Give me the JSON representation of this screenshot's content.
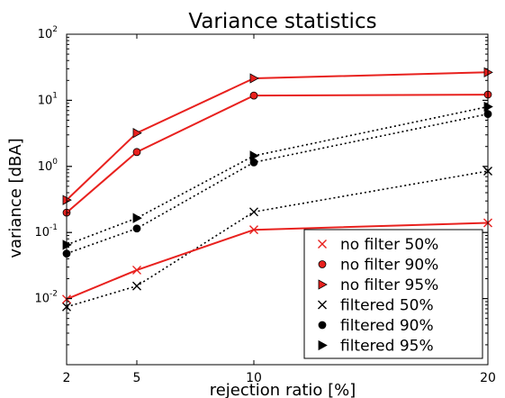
{
  "chart_data": {
    "type": "line",
    "title": "Variance statistics",
    "xlabel": "rejection ratio [%]",
    "ylabel": "variance [dBA]",
    "x_scale": "linear",
    "y_scale": "log",
    "xlim": [
      2,
      20
    ],
    "ylim": [
      0.001,
      100
    ],
    "x_ticks": [
      2,
      5,
      10,
      20
    ],
    "x_tick_labels": [
      "2",
      "5",
      "10",
      "20"
    ],
    "y_ticks": [
      0.01,
      0.1,
      1,
      10,
      100
    ],
    "y_tick_labels": [
      [
        "10",
        "-2"
      ],
      [
        "10",
        "-1"
      ],
      [
        "10",
        "0"
      ],
      [
        "10",
        "1"
      ],
      [
        "10",
        "2"
      ]
    ],
    "grid": false,
    "legend_position": "bottom-right",
    "x": [
      2,
      5,
      10,
      20
    ],
    "series": [
      {
        "name": "no filter 50%",
        "values": [
          0.0098,
          0.027,
          0.11,
          0.14
        ],
        "color": "#e8211e",
        "line": "solid",
        "marker": "x"
      },
      {
        "name": "no filter 90%",
        "values": [
          0.2,
          1.65,
          11.8,
          12.2
        ],
        "color": "#e8211e",
        "line": "solid",
        "marker": "circle"
      },
      {
        "name": "no filter 95%",
        "values": [
          0.31,
          3.2,
          21.5,
          26.5
        ],
        "color": "#e8211e",
        "line": "solid",
        "marker": "triangle-right"
      },
      {
        "name": "filtered 50%",
        "values": [
          0.0075,
          0.0155,
          0.205,
          0.85
        ],
        "color": "#000000",
        "line": "dotted",
        "marker": "x"
      },
      {
        "name": "filtered 90%",
        "values": [
          0.048,
          0.115,
          1.15,
          6.2
        ],
        "color": "#000000",
        "line": "dotted",
        "marker": "circle"
      },
      {
        "name": "filtered 95%",
        "values": [
          0.065,
          0.165,
          1.45,
          8.0
        ],
        "color": "#000000",
        "line": "dotted",
        "marker": "triangle-right"
      }
    ]
  }
}
